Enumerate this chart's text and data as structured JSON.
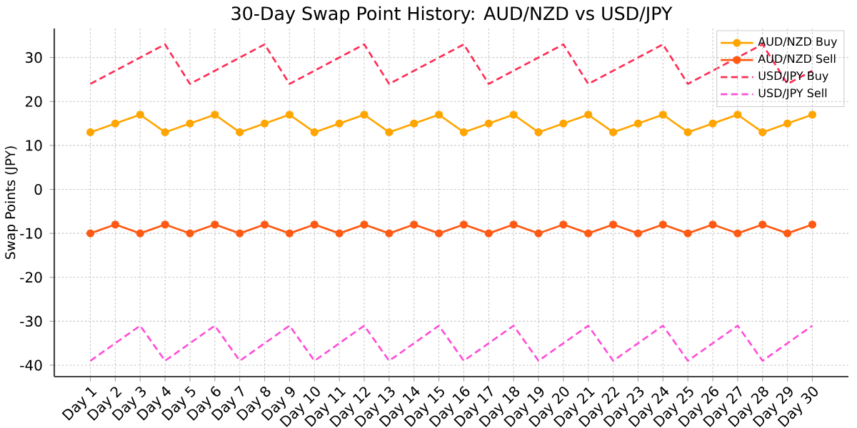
{
  "chart_data": {
    "type": "line",
    "title": "30-Day Swap Point History: AUD/NZD vs USD/JPY",
    "ylabel": "Swap Points (JPY)",
    "categories": [
      "Day 1",
      "Day 2",
      "Day 3",
      "Day 4",
      "Day 5",
      "Day 6",
      "Day 7",
      "Day 8",
      "Day 9",
      "Day 10",
      "Day 11",
      "Day 12",
      "Day 13",
      "Day 14",
      "Day 15",
      "Day 16",
      "Day 17",
      "Day 18",
      "Day 19",
      "Day 20",
      "Day 21",
      "Day 22",
      "Day 23",
      "Day 24",
      "Day 25",
      "Day 26",
      "Day 27",
      "Day 28",
      "Day 29",
      "Day 30"
    ],
    "series": [
      {
        "name": "AUD/NZD Buy",
        "color": "#ffa500",
        "marker": "circle",
        "line_style": "solid",
        "values": [
          13,
          15,
          17,
          13,
          15,
          17,
          13,
          15,
          17,
          13,
          15,
          17,
          13,
          15,
          17,
          13,
          15,
          17,
          13,
          15,
          17,
          13,
          15,
          17,
          13,
          15,
          17,
          13,
          15,
          17
        ]
      },
      {
        "name": "AUD/NZD Sell",
        "color": "#ff5a14",
        "marker": "circle",
        "line_style": "solid",
        "values": [
          -10,
          -8,
          -10,
          -8,
          -10,
          -8,
          -10,
          -8,
          -10,
          -8,
          -10,
          -8,
          -10,
          -8,
          -10,
          -8,
          -10,
          -8,
          -10,
          -8,
          -10,
          -8,
          -10,
          -8,
          -10,
          -8,
          -10,
          -8,
          -10,
          -8
        ]
      },
      {
        "name": "USD/JPY Buy",
        "color": "#ff2d55",
        "marker": "none",
        "line_style": "dashed",
        "values": [
          24,
          27,
          30,
          33,
          24,
          27,
          30,
          33,
          24,
          27,
          30,
          33,
          24,
          27,
          30,
          33,
          24,
          27,
          30,
          33,
          24,
          27,
          30,
          33,
          24,
          27,
          30,
          33,
          24,
          27
        ]
      },
      {
        "name": "USD/JPY Sell",
        "color": "#ff4fd8",
        "marker": "none",
        "line_style": "dashed",
        "values": [
          -39,
          -35,
          -31,
          -39,
          -35,
          -31,
          -39,
          -35,
          -31,
          -39,
          -35,
          -31,
          -39,
          -35,
          -31,
          -39,
          -35,
          -31,
          -39,
          -35,
          -31,
          -39,
          -35,
          -31,
          -39,
          -35,
          -31,
          -39,
          -35,
          -31
        ]
      }
    ],
    "ylim": [
      -42.6,
      36.6
    ],
    "yticks": [
      -40,
      -30,
      -20,
      -10,
      0,
      10,
      20,
      30
    ],
    "grid": true,
    "legend": "top right"
  }
}
